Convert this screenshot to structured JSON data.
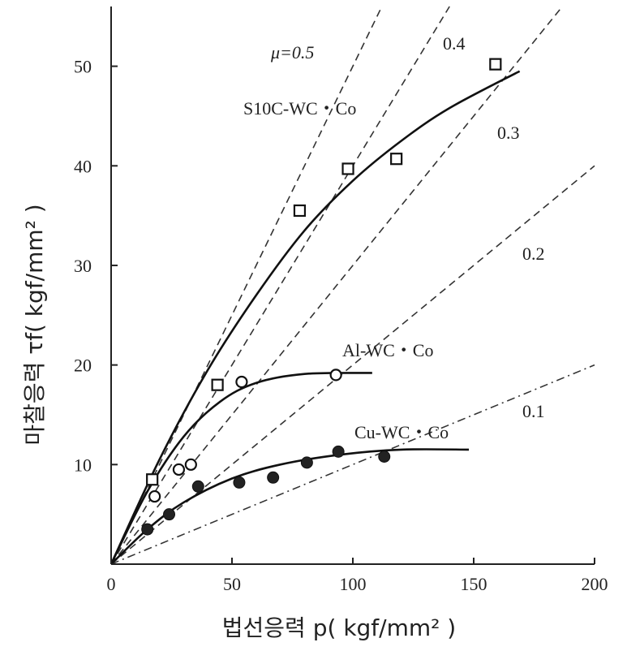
{
  "chart_data": {
    "type": "scatter",
    "xlabel": "법선응력 p( kgf/mm² )",
    "ylabel": "마찰응력 τf( kgf/mm² )",
    "xlim": [
      0,
      200
    ],
    "ylim": [
      0,
      56
    ],
    "x_ticks": [
      "0",
      "50",
      "100",
      "150",
      "200"
    ],
    "y_ticks": [
      "10",
      "20",
      "30",
      "40",
      "50"
    ],
    "grid": false,
    "reference_lines": [
      {
        "label": "μ=0.5",
        "slope": 0.5,
        "style": "dashed"
      },
      {
        "label": "0.4",
        "slope": 0.4,
        "style": "dashed"
      },
      {
        "label": "0.3",
        "slope": 0.3,
        "style": "dashed"
      },
      {
        "label": "0.2",
        "slope": 0.2,
        "style": "dashed"
      },
      {
        "label": "0.1",
        "slope": 0.1,
        "style": "dashdot"
      }
    ],
    "series": [
      {
        "name": "S10C-WC・Co",
        "marker": "open-square",
        "points": [
          [
            17,
            8.5
          ],
          [
            44,
            18
          ],
          [
            78,
            35.5
          ],
          [
            98,
            39.7
          ],
          [
            118,
            40.7
          ],
          [
            159,
            50.2
          ]
        ],
        "fit": [
          [
            0,
            0
          ],
          [
            20,
            10.5
          ],
          [
            40,
            19.5
          ],
          [
            60,
            27
          ],
          [
            80,
            33.5
          ],
          [
            100,
            38.5
          ],
          [
            120,
            42.5
          ],
          [
            140,
            45.8
          ],
          [
            169,
            49.5
          ]
        ]
      },
      {
        "name": "Al-WC・Co",
        "marker": "open-circle",
        "points": [
          [
            18,
            6.8
          ],
          [
            28,
            9.5
          ],
          [
            33,
            10
          ],
          [
            54,
            18.3
          ],
          [
            93,
            19
          ]
        ],
        "fit": [
          [
            0,
            0
          ],
          [
            15,
            7.3
          ],
          [
            30,
            12.8
          ],
          [
            45,
            16.3
          ],
          [
            60,
            18.2
          ],
          [
            80,
            19.1
          ],
          [
            108,
            19.2
          ]
        ]
      },
      {
        "name": "Cu-WC・Co",
        "marker": "filled-circle",
        "points": [
          [
            15,
            3.5
          ],
          [
            24,
            5
          ],
          [
            36,
            7.8
          ],
          [
            53,
            8.2
          ],
          [
            67,
            8.7
          ],
          [
            81,
            10.2
          ],
          [
            94,
            11.3
          ],
          [
            113,
            10.8
          ]
        ],
        "fit": [
          [
            0,
            0
          ],
          [
            15,
            3.5
          ],
          [
            30,
            6.2
          ],
          [
            50,
            8.6
          ],
          [
            70,
            10
          ],
          [
            95,
            11
          ],
          [
            120,
            11.5
          ],
          [
            148,
            11.5
          ]
        ]
      }
    ]
  }
}
